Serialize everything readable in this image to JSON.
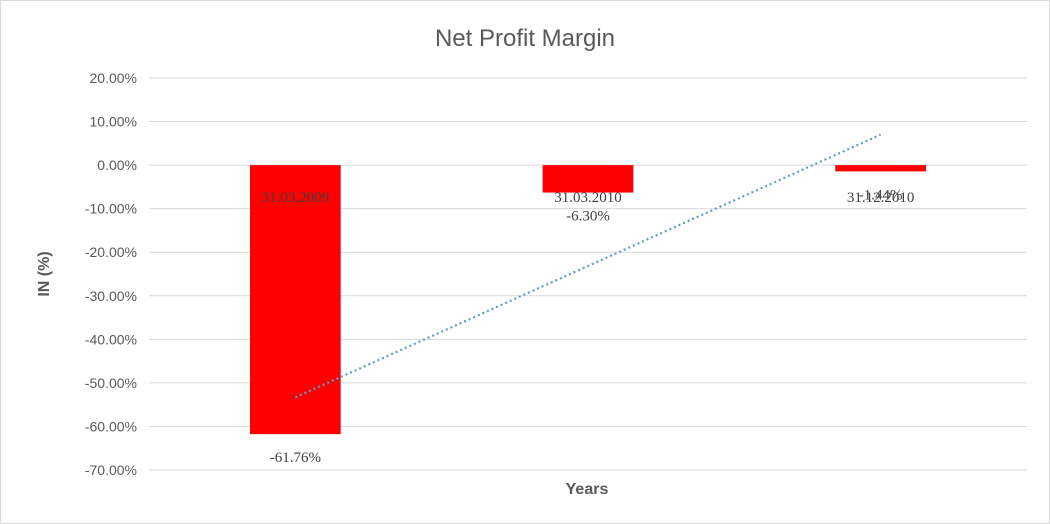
{
  "chart_data": {
    "type": "bar",
    "title": "Net Profit Margin",
    "xlabel": "Years",
    "ylabel": "IN (%)",
    "categories": [
      "31.03.2009",
      "31.03.2010",
      "31.12.2010"
    ],
    "values": [
      -61.76,
      -6.3,
      -1.44
    ],
    "value_labels": [
      "-61.76%",
      "-6.30%",
      "-1.44%"
    ],
    "ylim": [
      -70,
      20
    ],
    "yticks": [
      20,
      10,
      0,
      -10,
      -20,
      -30,
      -40,
      -50,
      -60,
      -70
    ],
    "ytick_labels": [
      "20.00%",
      "10.00%",
      "0.00%",
      "-10.00%",
      "-20.00%",
      "-30.00%",
      "-40.00%",
      "-50.00%",
      "-60.00%",
      "-70.00%"
    ],
    "grid": true,
    "legend": "none",
    "trendline": {
      "type": "linear",
      "style": "dotted"
    },
    "colors": {
      "bar": "#ff0000",
      "trendline": "#5b9bd5",
      "grid": "#d9d9d9",
      "text": "#595959"
    }
  }
}
